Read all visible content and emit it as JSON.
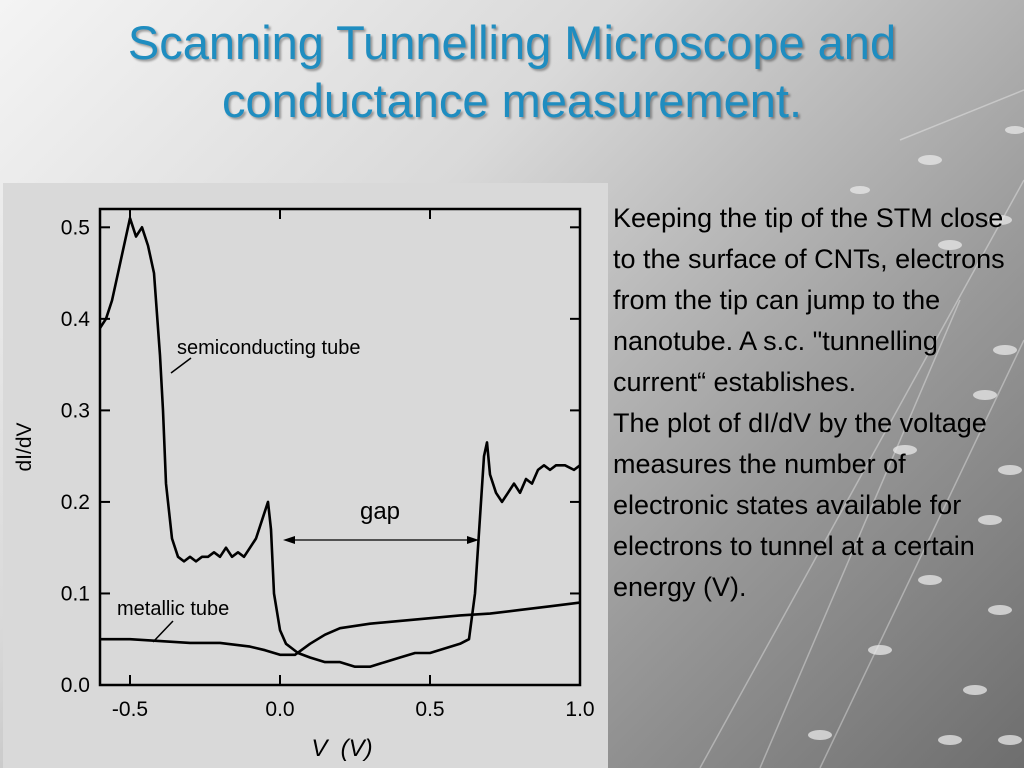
{
  "slide": {
    "title_line1": "Scanning Tunnelling Microscope and",
    "title_line2": "conductance measurement.",
    "paragraph1": "Keeping the tip of the STM close to the surface of CNTs, electrons from the tip can jump to the nanotube. A s.c. \"tunnelling current“ establishes.",
    "paragraph2": "The plot of dI/dV by the voltage measures the number of electronic states available for electrons to tunnel at a certain energy (V).",
    "colors": {
      "title": "#1f8dc0",
      "text": "#000000",
      "figure_bg": "#d9d9d9"
    }
  },
  "chart_data": {
    "type": "line",
    "xlabel": "V  (V)",
    "ylabel": "dI/dV",
    "xlim": [
      -0.6,
      1.0
    ],
    "ylim": [
      0.0,
      0.52
    ],
    "xticks": [
      "-0.5",
      "0.0",
      "0.5",
      "1.0"
    ],
    "xtick_values": [
      -0.5,
      0.0,
      0.5,
      1.0
    ],
    "yticks": [
      "0.0",
      "0.1",
      "0.2",
      "0.3",
      "0.4",
      "0.5"
    ],
    "ytick_values": [
      0.0,
      0.1,
      0.2,
      0.3,
      0.4,
      0.5
    ],
    "grid": false,
    "series": [
      {
        "name": "semiconducting tube",
        "x": [
          -0.6,
          -0.58,
          -0.56,
          -0.54,
          -0.52,
          -0.5,
          -0.49,
          -0.48,
          -0.46,
          -0.44,
          -0.42,
          -0.4,
          -0.39,
          -0.38,
          -0.36,
          -0.34,
          -0.32,
          -0.3,
          -0.28,
          -0.26,
          -0.24,
          -0.22,
          -0.2,
          -0.18,
          -0.16,
          -0.14,
          -0.12,
          -0.1,
          -0.08,
          -0.06,
          -0.04,
          -0.03,
          -0.02,
          0.0,
          0.02,
          0.04,
          0.06,
          0.1,
          0.15,
          0.2,
          0.25,
          0.3,
          0.35,
          0.4,
          0.45,
          0.5,
          0.55,
          0.6,
          0.63,
          0.65,
          0.67,
          0.68,
          0.69,
          0.7,
          0.72,
          0.74,
          0.76,
          0.78,
          0.8,
          0.82,
          0.84,
          0.86,
          0.88,
          0.9,
          0.92,
          0.95,
          0.98,
          1.0
        ],
        "y": [
          0.39,
          0.4,
          0.42,
          0.45,
          0.48,
          0.51,
          0.5,
          0.49,
          0.5,
          0.48,
          0.45,
          0.36,
          0.3,
          0.22,
          0.16,
          0.14,
          0.135,
          0.14,
          0.135,
          0.14,
          0.14,
          0.145,
          0.14,
          0.15,
          0.14,
          0.145,
          0.14,
          0.15,
          0.16,
          0.18,
          0.2,
          0.17,
          0.1,
          0.06,
          0.045,
          0.04,
          0.035,
          0.03,
          0.025,
          0.025,
          0.02,
          0.02,
          0.025,
          0.03,
          0.035,
          0.035,
          0.04,
          0.045,
          0.05,
          0.1,
          0.2,
          0.25,
          0.265,
          0.23,
          0.21,
          0.2,
          0.21,
          0.22,
          0.21,
          0.225,
          0.22,
          0.235,
          0.24,
          0.235,
          0.24,
          0.24,
          0.235,
          0.24
        ]
      },
      {
        "name": "metallic tube",
        "x": [
          -0.6,
          -0.5,
          -0.4,
          -0.3,
          -0.2,
          -0.1,
          -0.05,
          0.0,
          0.05,
          0.1,
          0.15,
          0.2,
          0.3,
          0.4,
          0.5,
          0.6,
          0.7,
          0.8,
          0.9,
          1.0
        ],
        "y": [
          0.05,
          0.05,
          0.048,
          0.046,
          0.046,
          0.042,
          0.038,
          0.033,
          0.033,
          0.045,
          0.055,
          0.062,
          0.067,
          0.07,
          0.073,
          0.076,
          0.078,
          0.082,
          0.086,
          0.09
        ]
      }
    ],
    "annotations": [
      "semiconducting tube",
      "metallic tube",
      "gap"
    ],
    "gap_range": [
      0.0,
      0.66
    ]
  }
}
